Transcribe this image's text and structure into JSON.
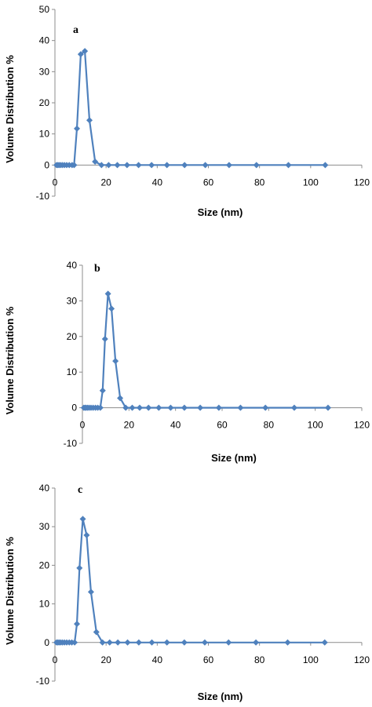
{
  "colors": {
    "series": "#4f81bd",
    "marker": "#4f81bd",
    "axis": "#8c8c8c"
  },
  "chart_data": [
    {
      "type": "line",
      "panel_label": "a",
      "xlabel": "Size (nm)",
      "ylabel": "Volume Distribution %",
      "xlim": [
        0,
        120
      ],
      "ylim": [
        -10,
        50
      ],
      "xticks": [
        0,
        20,
        40,
        60,
        80,
        100,
        120
      ],
      "yticks": [
        -10,
        0,
        10,
        20,
        30,
        40,
        50
      ],
      "grid": false,
      "series": [
        {
          "marker": "diamond",
          "x": [
            0.6,
            1.1,
            1.6,
            2.2,
            2.9,
            3.7,
            4.6,
            5.6,
            6.7,
            7.5,
            8.6,
            10.1,
            11.7,
            13.5,
            15.7,
            18.2,
            21.0,
            24.4,
            28.2,
            32.7,
            37.8,
            43.8,
            50.7,
            58.8,
            68.1,
            78.8,
            91.3,
            105.7
          ],
          "y": [
            0,
            0,
            0,
            0,
            0,
            0,
            0,
            0,
            0,
            0,
            11.7,
            35.6,
            36.6,
            14.4,
            1.1,
            0,
            0,
            0,
            0,
            0,
            0,
            0,
            0,
            0,
            0,
            0,
            0,
            0
          ]
        }
      ]
    },
    {
      "type": "line",
      "panel_label": "b",
      "xlabel": "Size (nm)",
      "ylabel": "Volume Distribution %",
      "xlim": [
        0,
        120
      ],
      "ylim": [
        -10,
        40
      ],
      "xticks": [
        0,
        20,
        40,
        60,
        80,
        100,
        120
      ],
      "yticks": [
        -10,
        0,
        10,
        20,
        30,
        40
      ],
      "grid": false,
      "series": [
        {
          "marker": "diamond",
          "x": [
            0.6,
            1.1,
            1.6,
            2.2,
            2.9,
            3.7,
            4.6,
            5.6,
            6.6,
            7.7,
            8.7,
            9.7,
            11.0,
            12.5,
            14.2,
            16.2,
            18.6,
            21.4,
            24.6,
            28.4,
            32.8,
            37.9,
            43.8,
            50.6,
            58.6,
            67.9,
            78.6,
            91.0,
            105.5
          ],
          "y": [
            0,
            0,
            0,
            0,
            0,
            0,
            0,
            0,
            0,
            0,
            4.8,
            19.3,
            32.0,
            27.8,
            13.1,
            2.7,
            0,
            0,
            0,
            0,
            0,
            0,
            0,
            0,
            0,
            0,
            0,
            0,
            0
          ]
        }
      ]
    },
    {
      "type": "line",
      "panel_label": "c",
      "xlabel": "Size (nm)",
      "ylabel": "Volume Distribution %",
      "xlim": [
        0,
        120
      ],
      "ylim": [
        -10,
        40
      ],
      "xticks": [
        0,
        20,
        40,
        60,
        80,
        100,
        120
      ],
      "yticks": [
        -10,
        0,
        10,
        20,
        30,
        40
      ],
      "grid": false,
      "series": [
        {
          "marker": "diamond",
          "x": [
            0.6,
            1.1,
            1.6,
            2.2,
            2.9,
            3.7,
            4.6,
            5.6,
            6.6,
            7.7,
            8.6,
            9.6,
            10.9,
            12.4,
            14.1,
            16.2,
            18.6,
            21.4,
            24.6,
            28.4,
            32.8,
            37.9,
            43.8,
            50.6,
            58.6,
            67.9,
            78.6,
            91.0,
            105.5
          ],
          "y": [
            0,
            0,
            0,
            0,
            0,
            0,
            0,
            0,
            0,
            0,
            4.8,
            19.3,
            32.0,
            27.8,
            13.1,
            2.7,
            0,
            0,
            0,
            0,
            0,
            0,
            0,
            0,
            0,
            0,
            0,
            0,
            0
          ]
        }
      ]
    }
  ]
}
